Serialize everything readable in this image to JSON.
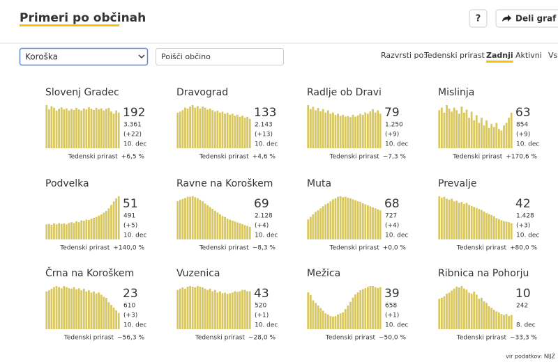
{
  "header": {
    "title": "Primeri po občinah",
    "help": "?",
    "share": "Deli graf na"
  },
  "controls": {
    "region": "Koroška",
    "search_placeholder": "Poišči občino",
    "sort_label": "Razvrsti po:",
    "sort_options": [
      "Tedenski prirast",
      "Zadnji",
      "Aktivni",
      "Vsi"
    ],
    "active_sort": 1
  },
  "panels": [
    {
      "name": "Slovenj Gradec",
      "last": "192",
      "total": "3.361",
      "change": "(+22)",
      "date": "10. dec",
      "growth_label": "Tedenski prirast",
      "growth": "+6,5 %",
      "growth_color": "#c0392b",
      "bars": [
        80,
        72,
        78,
        75,
        70,
        73,
        76,
        72,
        74,
        70,
        73,
        71,
        75,
        72,
        70,
        74,
        72,
        76,
        73,
        71,
        75,
        72,
        74,
        70,
        73,
        75,
        68,
        64,
        70,
        66
      ]
    },
    {
      "name": "Dravograd",
      "last": "133",
      "total": "2.143",
      "change": "(+13)",
      "date": "10. dec",
      "growth_label": "Tedenski prirast",
      "growth": "+4,6 %",
      "growth_color": "#c0392b",
      "bars": [
        70,
        72,
        75,
        80,
        78,
        82,
        85,
        80,
        83,
        78,
        82,
        80,
        76,
        78,
        75,
        72,
        74,
        70,
        72,
        68,
        70,
        66,
        68,
        64,
        66,
        62,
        64,
        60,
        62,
        58
      ]
    },
    {
      "name": "Radlje ob Dravi",
      "last": "79",
      "total": "1.250",
      "change": "(+9)",
      "date": "10. dec",
      "growth_label": "Tedenski prirast",
      "growth": "−7,3 %",
      "growth_color": "#27ae60",
      "bars": [
        75,
        68,
        72,
        66,
        70,
        64,
        68,
        62,
        66,
        60,
        62,
        58,
        60,
        56,
        58,
        55,
        56,
        54,
        58,
        55,
        57,
        60,
        58,
        62,
        60,
        64,
        68,
        62,
        66,
        60
      ]
    },
    {
      "name": "Mislinja",
      "last": "63",
      "total": "854",
      "change": "(+9)",
      "date": "10. dec",
      "growth_label": "Tedenski prirast",
      "growth": "+170,6 %",
      "growth_color": "#c0392b",
      "bars": [
        75,
        80,
        70,
        85,
        78,
        72,
        80,
        75,
        68,
        82,
        70,
        76,
        60,
        72,
        55,
        65,
        50,
        60,
        45,
        55,
        40,
        48,
        42,
        50,
        38,
        35,
        45,
        50,
        60,
        70
      ]
    },
    {
      "name": "Podvelka",
      "last": "51",
      "total": "491",
      "change": "(+5)",
      "date": "10. dec",
      "growth_label": "Tedenski prirast",
      "growth": "+140,0 %",
      "growth_color": "#c0392b",
      "bars": [
        35,
        36,
        34,
        37,
        35,
        38,
        36,
        37,
        35,
        38,
        40,
        38,
        42,
        40,
        44,
        43,
        46,
        45,
        48,
        50,
        52,
        55,
        58,
        62,
        66,
        72,
        80,
        88,
        95,
        100
      ]
    },
    {
      "name": "Ravne na Koroškem",
      "last": "69",
      "total": "2.128",
      "change": "(+4)",
      "date": "10. dec",
      "growth_label": "Tedenski prirast",
      "growth": "−8,3 %",
      "growth_color": "#27ae60",
      "bars": [
        85,
        88,
        90,
        92,
        95,
        95,
        96,
        94,
        92,
        88,
        85,
        80,
        76,
        72,
        68,
        64,
        60,
        56,
        52,
        50,
        46,
        44,
        42,
        40,
        38,
        36,
        34,
        32,
        30,
        28
      ]
    },
    {
      "name": "Muta",
      "last": "68",
      "total": "727",
      "change": "(+4)",
      "date": "10. dec",
      "growth_label": "Tedenski prirast",
      "growth": "+0,0 %",
      "growth_color": "#222222",
      "bars": [
        40,
        45,
        50,
        55,
        58,
        62,
        66,
        70,
        72,
        76,
        80,
        82,
        85,
        86,
        84,
        85,
        83,
        82,
        80,
        78,
        76,
        75,
        72,
        70,
        68,
        66,
        64,
        62,
        60,
        58
      ]
    },
    {
      "name": "Prevalje",
      "last": "42",
      "total": "1.428",
      "change": "(+3)",
      "date": "10. dec",
      "growth_label": "Tedenski prirast",
      "growth": "+80,0 %",
      "growth_color": "#c0392b",
      "bars": [
        85,
        82,
        84,
        80,
        78,
        80,
        75,
        76,
        72,
        74,
        70,
        72,
        68,
        66,
        64,
        62,
        60,
        58,
        55,
        52,
        50,
        48,
        46,
        42,
        40,
        38,
        36,
        35,
        34,
        32
      ]
    },
    {
      "name": "Črna na Koroškem",
      "last": "23",
      "total": "610",
      "change": "(+3)",
      "date": "10. dec",
      "growth_label": "Tedenski prirast",
      "growth": "−56,3 %",
      "growth_color": "#27ae60",
      "bars": [
        70,
        72,
        75,
        78,
        80,
        78,
        76,
        80,
        78,
        76,
        75,
        78,
        74,
        76,
        72,
        75,
        70,
        72,
        68,
        70,
        66,
        68,
        64,
        60,
        58,
        50,
        45,
        40,
        35,
        30
      ]
    },
    {
      "name": "Vuzenica",
      "last": "43",
      "total": "520",
      "change": "(+1)",
      "date": "10. dec",
      "growth_label": "Tedenski prirast",
      "growth": "−28,0 %",
      "growth_color": "#27ae60",
      "bars": [
        60,
        62,
        64,
        62,
        65,
        66,
        65,
        64,
        66,
        65,
        64,
        62,
        60,
        62,
        58,
        60,
        56,
        58,
        55,
        56,
        54,
        55,
        56,
        58,
        57,
        58,
        60,
        60,
        58,
        58
      ]
    },
    {
      "name": "Mežica",
      "last": "39",
      "total": "658",
      "change": "(+1)",
      "date": "10. dec",
      "growth_label": "Tedenski prirast",
      "growth": "−50,0 %",
      "growth_color": "#27ae60",
      "bars": [
        70,
        65,
        55,
        50,
        45,
        40,
        35,
        30,
        28,
        25,
        24,
        25,
        28,
        30,
        32,
        38,
        45,
        52,
        60,
        66,
        70,
        74,
        76,
        78,
        80,
        82,
        82,
        80,
        78,
        80
      ]
    },
    {
      "name": "Ribnica na Pohorju",
      "last": "10",
      "total": "242",
      "change": null,
      "date": "8. dec",
      "growth_label": "Tedenski prirast",
      "growth": "−33,3 %",
      "growth_color": "#27ae60",
      "bars": [
        60,
        62,
        65,
        70,
        72,
        76,
        80,
        84,
        82,
        85,
        80,
        78,
        72,
        70,
        74,
        68,
        60,
        62,
        55,
        52,
        45,
        42,
        38,
        35,
        33,
        30,
        28,
        30,
        26,
        28
      ]
    }
  ],
  "footer": "vir podatkov: NIJZ"
}
